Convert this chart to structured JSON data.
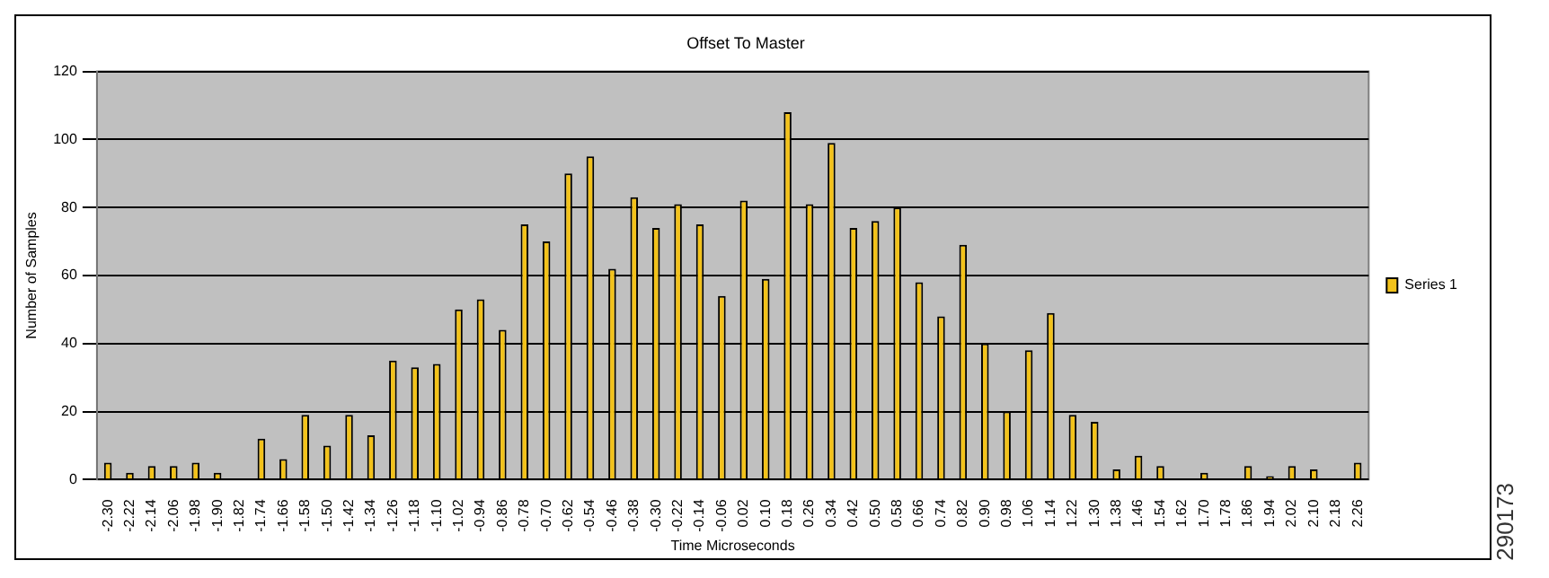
{
  "chart_data": {
    "type": "bar",
    "title": "Offset To Master",
    "xlabel": "Time Microseconds",
    "ylabel": "Number of Samples",
    "categories": [
      "-2.30",
      "-2.22",
      "-2.14",
      "-2.06",
      "-1.98",
      "-1.90",
      "-1.82",
      "-1.74",
      "-1.66",
      "-1.58",
      "-1.50",
      "-1.42",
      "-1.34",
      "-1.26",
      "-1.18",
      "-1.10",
      "-1.02",
      "-0.94",
      "-0.86",
      "-0.78",
      "-0.70",
      "-0.62",
      "-0.54",
      "-0.46",
      "-0.38",
      "-0.30",
      "-0.22",
      "-0.14",
      "-0.06",
      "0.02",
      "0.10",
      "0.18",
      "0.26",
      "0.34",
      "0.42",
      "0.50",
      "0.58",
      "0.66",
      "0.74",
      "0.82",
      "0.90",
      "0.98",
      "1.06",
      "1.14",
      "1.22",
      "1.30",
      "1.38",
      "1.46",
      "1.54",
      "1.62",
      "1.70",
      "1.78",
      "1.86",
      "1.94",
      "2.02",
      "2.10",
      "2.18",
      "2.26"
    ],
    "series": [
      {
        "name": "Series 1",
        "color": "#f2c21b",
        "values": [
          5,
          2,
          4,
          4,
          5,
          2,
          0,
          12,
          6,
          19,
          10,
          19,
          13,
          35,
          33,
          34,
          50,
          53,
          44,
          75,
          70,
          90,
          95,
          62,
          83,
          74,
          81,
          75,
          54,
          82,
          59,
          108,
          81,
          99,
          74,
          76,
          80,
          58,
          48,
          69,
          40,
          20,
          38,
          49,
          19,
          17,
          3,
          7,
          4,
          0,
          2,
          0,
          4,
          1,
          4,
          3,
          0,
          5
        ]
      }
    ],
    "ylim": [
      0,
      120
    ],
    "yticks": [
      0,
      20,
      40,
      60,
      80,
      100,
      120
    ],
    "grid": "y",
    "legend": "right",
    "annotations": [
      "290173"
    ]
  }
}
